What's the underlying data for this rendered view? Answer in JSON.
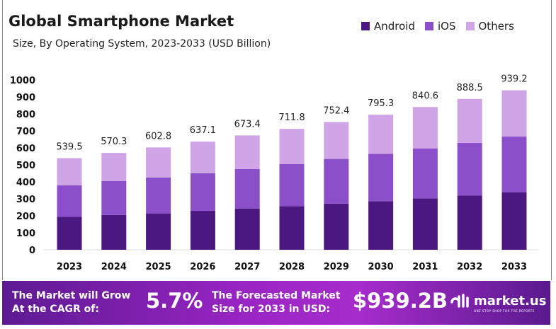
{
  "chart_data": {
    "type": "bar",
    "stacked": true,
    "title": "Global Smartphone Market",
    "subtitle": "Size, By Operating System, 2023-2033 (USD Billion)",
    "categories": [
      "2023",
      "2024",
      "2025",
      "2026",
      "2027",
      "2028",
      "2029",
      "2030",
      "2031",
      "2032",
      "2033"
    ],
    "series": [
      {
        "name": "Android",
        "color": "#4b1780",
        "values": [
          194,
          205,
          214,
          229,
          243,
          257,
          272,
          286,
          303,
          319,
          339
        ]
      },
      {
        "name": "iOS",
        "color": "#8a4fc9",
        "values": [
          185,
          200,
          211,
          222,
          233,
          248,
          263,
          279,
          294,
          310,
          328
        ]
      },
      {
        "name": "Others",
        "color": "#d0a5e8",
        "values": [
          160.5,
          165.3,
          177.8,
          186.1,
          197.4,
          206.8,
          217.4,
          230.3,
          243.6,
          259.5,
          272.2
        ]
      }
    ],
    "totals": [
      "539.5",
      "570.3",
      "602.8",
      "637.1",
      "673.4",
      "711.8",
      "752.4",
      "795.3",
      "840.6",
      "888.5",
      "939.2"
    ],
    "yticks": [
      "0",
      "100",
      "200",
      "300",
      "400",
      "500",
      "600",
      "700",
      "800",
      "900",
      "1000"
    ],
    "ylim": [
      0,
      1000
    ],
    "grid": false,
    "legend_position": "top-right"
  },
  "banner": {
    "cagr_label_1": "The Market will Grow",
    "cagr_label_2": "At the CAGR of:",
    "cagr_value": "5.7%",
    "forecast_label_1": "The Forecasted Market",
    "forecast_label_2": "Size for 2033 in USD:",
    "forecast_value": "$939.2B",
    "logo_text": "market.us",
    "logo_tagline": "ONE STOP SHOP FOR THE REPORTS"
  }
}
